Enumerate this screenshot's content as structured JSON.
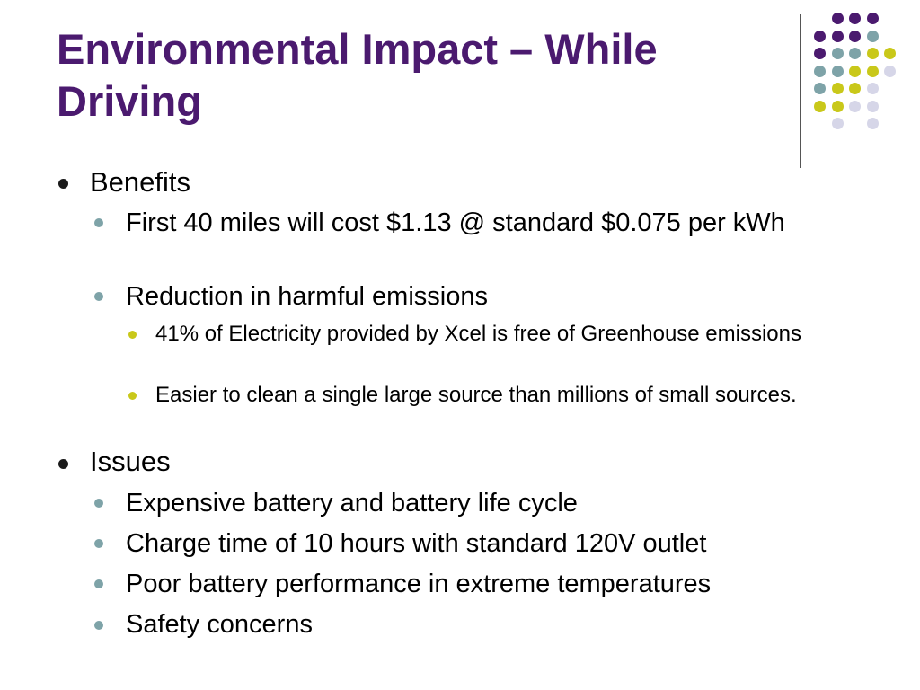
{
  "title": {
    "line1": "Environmental Impact – While",
    "line2": "Driving"
  },
  "decor": {
    "icon": "dot-grid-decoration",
    "colors": {
      "purple": "#4b1a6f",
      "teal": "#7ea3a8",
      "lime": "#c9c81a",
      "lavender": "#d6d6e8"
    }
  },
  "content": {
    "benefits": {
      "label": "Benefits",
      "items": [
        "First 40 miles will cost $1.13 @ standard $0.075 per kWh",
        "Reduction in harmful emissions"
      ],
      "sub_items": [
        "41% of Electricity provided by Xcel is free of Greenhouse emissions",
        "Easier to clean a single large source than millions of small sources."
      ]
    },
    "issues": {
      "label": "Issues",
      "items": [
        "Expensive battery and battery life cycle",
        "Charge time of 10 hours with standard 120V outlet",
        "Poor battery performance in extreme temperatures",
        "Safety concerns"
      ]
    }
  }
}
